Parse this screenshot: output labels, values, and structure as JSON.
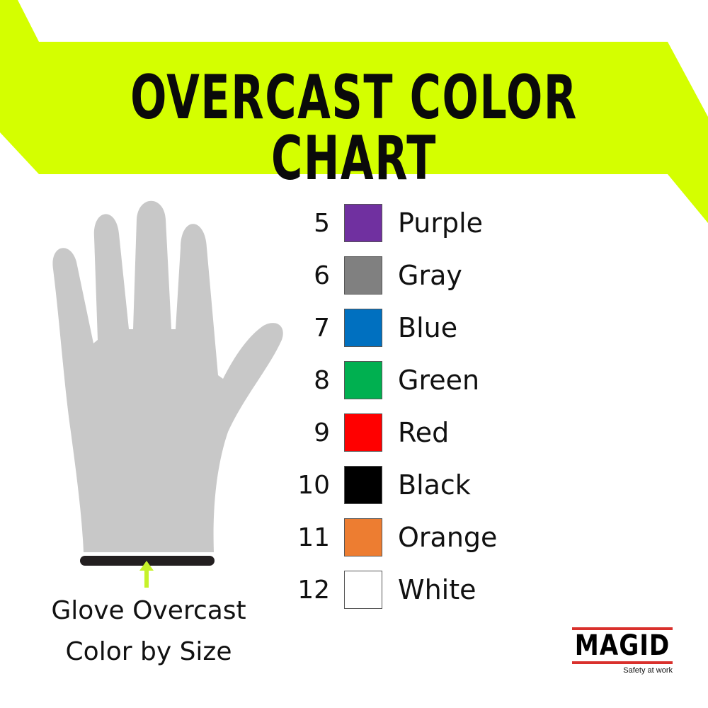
{
  "title": "OVERCAST COLOR CHART",
  "accent_color": "#d4ff00",
  "caption": {
    "line1": "Glove Overcast",
    "line2": "Color by Size"
  },
  "sizes": [
    {
      "size": "5",
      "color_name": "Purple",
      "hex": "#7030a0"
    },
    {
      "size": "6",
      "color_name": "Gray",
      "hex": "#808080"
    },
    {
      "size": "7",
      "color_name": "Blue",
      "hex": "#0070c0"
    },
    {
      "size": "8",
      "color_name": "Green",
      "hex": "#00b050"
    },
    {
      "size": "9",
      "color_name": "Red",
      "hex": "#ff0000"
    },
    {
      "size": "10",
      "color_name": "Black",
      "hex": "#000000"
    },
    {
      "size": "11",
      "color_name": "Orange",
      "hex": "#ed7d31"
    },
    {
      "size": "12",
      "color_name": "White",
      "hex": "#ffffff"
    }
  ],
  "logo": {
    "brand": "MAGID",
    "tagline": "Safety at work"
  },
  "icons": {
    "glove": "glove-icon",
    "arrow": "arrow-up-icon"
  }
}
